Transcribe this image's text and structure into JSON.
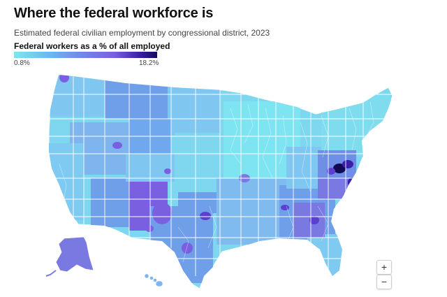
{
  "header": {
    "title": "Where the federal workforce is",
    "subtitle": "Estimated federal civilian employment by congressional district, 2023"
  },
  "legend": {
    "title": "Federal workers as a % of all employed",
    "min_label": "0.8%",
    "max_label": "18.2%",
    "min_value": 0.8,
    "max_value": 18.2,
    "colors": [
      "#7fe4f1",
      "#6fb7ee",
      "#6f8ee6",
      "#7a5fe0",
      "#3b1fa8",
      "#100a55"
    ]
  },
  "map": {
    "type": "choropleth",
    "region": "United States congressional districts",
    "border_color": "#ffffff",
    "base_color": "#7fd6ef",
    "highlight_colors": {
      "low": "#7fe4f1",
      "medium": "#6f9fe9",
      "high": "#7a5fe0",
      "very_high": "#3b1fa8",
      "max": "#100a55"
    }
  },
  "controls": {
    "zoom_in_label": "+",
    "zoom_out_label": "−"
  }
}
